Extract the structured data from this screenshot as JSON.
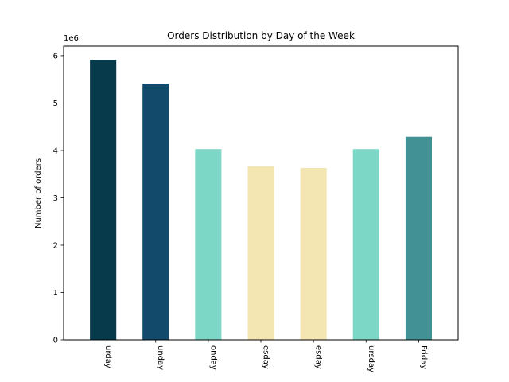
{
  "chart_data": {
    "type": "bar",
    "title": "Orders Distribution by Day of the Week",
    "xlabel": "",
    "ylabel": "Number of orders",
    "offset_text": "1e6",
    "categories": [
      "Saturday",
      "Sunday",
      "Monday",
      "Tuesday",
      "Wednesday",
      "Thursday",
      "Friday"
    ],
    "category_labels_visible": [
      "urday",
      "unday",
      "onday",
      "esday",
      "esday",
      "ursday",
      "Friday"
    ],
    "values": [
      5.91,
      5.41,
      4.03,
      3.67,
      3.63,
      4.03,
      4.29
    ],
    "colors": [
      "#073b4c",
      "#124a6b",
      "#7dd7c6",
      "#f3e6b2",
      "#f3e6b2",
      "#7dd7c6",
      "#429295"
    ],
    "yticks": [
      0,
      1,
      2,
      3,
      4,
      5,
      6
    ],
    "ylim": [
      0,
      6.2
    ],
    "grid": false,
    "legend": "none"
  }
}
